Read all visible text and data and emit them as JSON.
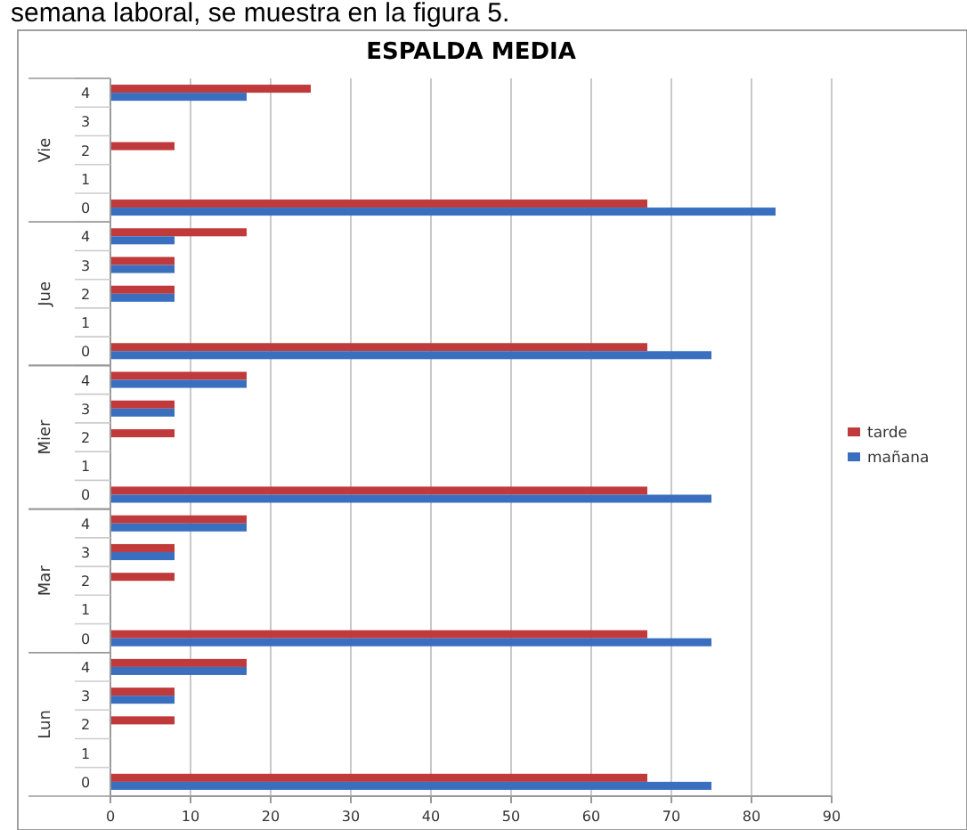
{
  "chart_data": {
    "type": "bar",
    "orientation": "horizontal",
    "title": "ESPALDA MEDIA",
    "annotations": [
      "semana laboral, se muestra en la figura 5.",
      "Vie",
      "Jue",
      "Mier",
      "Mar",
      "Lun"
    ],
    "categories": [
      "4",
      "3",
      "2",
      "1",
      "0",
      "4",
      "3",
      "2",
      "1",
      "0",
      "4",
      "3",
      "2",
      "1",
      "0",
      "4",
      "3",
      "2",
      "1",
      "0",
      "4",
      "3",
      "2",
      "1",
      "0"
    ],
    "series": [
      {
        "name": "tarde",
        "color": "#c0393b",
        "values": [
          25,
          0,
          8,
          0,
          67,
          17,
          8,
          8,
          0,
          67,
          17,
          8,
          8,
          0,
          67,
          17,
          8,
          8,
          0,
          67,
          17,
          8,
          8,
          0,
          67
        ]
      },
      {
        "name": "mañana",
        "color": "#3a6fbf",
        "values": [
          17,
          0,
          0,
          0,
          83,
          8,
          8,
          8,
          0,
          75,
          17,
          8,
          0,
          0,
          75,
          17,
          8,
          0,
          0,
          75,
          17,
          8,
          0,
          0,
          75
        ]
      }
    ],
    "xlim": [
      0,
      90
    ],
    "xticks": [
      0,
      10,
      20,
      30,
      40,
      50,
      60,
      70,
      80,
      90
    ],
    "grid": "x",
    "legend": "right"
  }
}
